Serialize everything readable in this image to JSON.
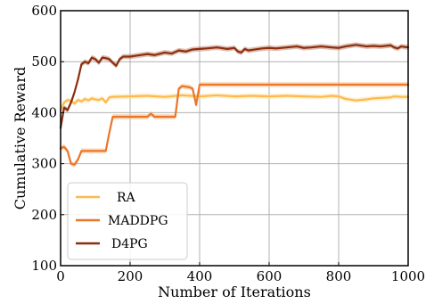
{
  "chart_data": {
    "type": "line",
    "title": "",
    "xlabel": "Number of Iterations",
    "ylabel": "Cumulative Reward",
    "xlim": [
      0,
      1000
    ],
    "ylim": [
      100,
      600
    ],
    "xticks": [
      0,
      200,
      400,
      600,
      800,
      1000
    ],
    "yticks": [
      100,
      200,
      300,
      400,
      500,
      600
    ],
    "xtick_labels": [
      "0",
      "200",
      "400",
      "600",
      "800",
      "1000"
    ],
    "ytick_labels": [
      "100",
      "200",
      "300",
      "400",
      "500",
      "600"
    ],
    "grid": true,
    "legend_position": "lower-left",
    "series": [
      {
        "name": "RA",
        "color": "#fdb94e",
        "band_color": "#fde3a8",
        "x": [
          0,
          10,
          20,
          30,
          40,
          50,
          60,
          70,
          80,
          90,
          100,
          110,
          120,
          130,
          140,
          150,
          200,
          250,
          300,
          350,
          400,
          450,
          500,
          550,
          600,
          650,
          700,
          750,
          780,
          800,
          820,
          850,
          880,
          900,
          950,
          960,
          980,
          1000
        ],
        "values": [
          405,
          420,
          425,
          423,
          418,
          425,
          422,
          427,
          424,
          428,
          426,
          425,
          428,
          420,
          430,
          431,
          432,
          433,
          431,
          434,
          432,
          434,
          432,
          433,
          432,
          433,
          432,
          431,
          433,
          432,
          427,
          424,
          426,
          428,
          430,
          432,
          431,
          431
        ]
      },
      {
        "name": "MADDPG",
        "color": "#e8762b",
        "band_color": "#f5b98a",
        "x": [
          0,
          10,
          20,
          30,
          40,
          50,
          60,
          70,
          130,
          140,
          150,
          250,
          260,
          270,
          330,
          340,
          350,
          370,
          380,
          390,
          400,
          1000
        ],
        "values": [
          330,
          333,
          325,
          300,
          298,
          308,
          325,
          325,
          325,
          360,
          392,
          392,
          398,
          392,
          392,
          447,
          452,
          450,
          447,
          415,
          455,
          455
        ]
      },
      {
        "name": "D4PG",
        "color": "#8b2e0e",
        "band_color": "#c48a72",
        "x": [
          0,
          10,
          20,
          30,
          40,
          50,
          60,
          70,
          80,
          90,
          100,
          110,
          120,
          130,
          140,
          150,
          160,
          170,
          180,
          200,
          220,
          250,
          270,
          300,
          320,
          340,
          360,
          380,
          400,
          420,
          450,
          480,
          500,
          510,
          520,
          530,
          540,
          560,
          580,
          600,
          620,
          650,
          680,
          700,
          720,
          750,
          780,
          800,
          820,
          850,
          880,
          900,
          920,
          950,
          960,
          970,
          980,
          1000
        ],
        "values": [
          370,
          410,
          405,
          420,
          440,
          465,
          495,
          500,
          497,
          508,
          505,
          498,
          508,
          507,
          505,
          498,
          492,
          505,
          510,
          510,
          512,
          515,
          513,
          518,
          516,
          522,
          520,
          524,
          525,
          526,
          528,
          525,
          527,
          520,
          518,
          525,
          522,
          524,
          526,
          527,
          526,
          528,
          530,
          527,
          528,
          530,
          528,
          527,
          530,
          533,
          530,
          531,
          530,
          532,
          528,
          526,
          530,
          528
        ]
      }
    ]
  }
}
